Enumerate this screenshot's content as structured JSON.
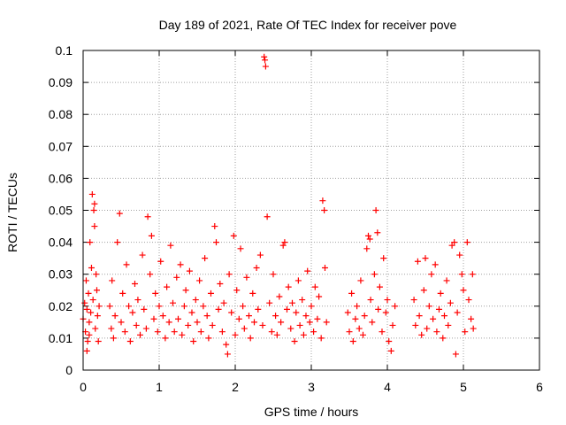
{
  "chart_data": {
    "type": "scatter",
    "title": "Day 189 of 2021, Rate Of TEC Index for receiver pove",
    "xlabel": "GPS time / hours",
    "ylabel": "ROTI / TECUs",
    "xlim": [
      0,
      6
    ],
    "ylim": [
      0,
      0.1
    ],
    "x_ticks": [
      "0",
      "1",
      "2",
      "3",
      "4",
      "5",
      "6"
    ],
    "y_ticks": [
      "0",
      "0.01",
      "0.02",
      "0.03",
      "0.04",
      "0.05",
      "0.06",
      "0.07",
      "0.08",
      "0.09",
      "0.1"
    ],
    "grid": true,
    "legend": "none",
    "marker": "+",
    "marker_color": "#ff0000",
    "series": [
      {
        "points": [
          [
            0.0,
            0.016
          ],
          [
            0.02,
            0.021
          ],
          [
            0.03,
            0.012
          ],
          [
            0.04,
            0.028
          ],
          [
            0.05,
            0.019
          ],
          [
            0.06,
            0.009
          ],
          [
            0.07,
            0.024
          ],
          [
            0.08,
            0.015
          ],
          [
            0.09,
            0.04
          ],
          [
            0.1,
            0.018
          ],
          [
            0.11,
            0.032
          ],
          [
            0.12,
            0.055
          ],
          [
            0.13,
            0.022
          ],
          [
            0.14,
            0.05
          ],
          [
            0.15,
            0.045
          ],
          [
            0.16,
            0.013
          ],
          [
            0.17,
            0.03
          ],
          [
            0.18,
            0.025
          ],
          [
            0.19,
            0.017
          ],
          [
            0.2,
            0.009
          ],
          [
            0.21,
            0.02
          ],
          [
            0.05,
            0.006
          ],
          [
            0.08,
            0.011
          ],
          [
            0.15,
            0.052
          ],
          [
            0.35,
            0.02
          ],
          [
            0.37,
            0.013
          ],
          [
            0.38,
            0.028
          ],
          [
            0.4,
            0.01
          ],
          [
            0.42,
            0.017
          ],
          [
            0.45,
            0.04
          ],
          [
            0.48,
            0.049
          ],
          [
            0.5,
            0.015
          ],
          [
            0.52,
            0.024
          ],
          [
            0.55,
            0.012
          ],
          [
            0.57,
            0.033
          ],
          [
            0.6,
            0.02
          ],
          [
            0.62,
            0.009
          ],
          [
            0.65,
            0.018
          ],
          [
            0.68,
            0.027
          ],
          [
            0.7,
            0.014
          ],
          [
            0.72,
            0.022
          ],
          [
            0.75,
            0.011
          ],
          [
            0.78,
            0.036
          ],
          [
            0.8,
            0.019
          ],
          [
            0.83,
            0.013
          ],
          [
            0.85,
            0.048
          ],
          [
            0.88,
            0.03
          ],
          [
            0.9,
            0.042
          ],
          [
            0.93,
            0.016
          ],
          [
            0.95,
            0.024
          ],
          [
            0.98,
            0.012
          ],
          [
            1.0,
            0.02
          ],
          [
            1.02,
            0.034
          ],
          [
            1.05,
            0.017
          ],
          [
            1.08,
            0.01
          ],
          [
            1.1,
            0.026
          ],
          [
            1.13,
            0.015
          ],
          [
            1.15,
            0.039
          ],
          [
            1.18,
            0.021
          ],
          [
            1.2,
            0.012
          ],
          [
            1.23,
            0.029
          ],
          [
            1.25,
            0.016
          ],
          [
            1.28,
            0.033
          ],
          [
            1.3,
            0.011
          ],
          [
            1.33,
            0.02
          ],
          [
            1.35,
            0.025
          ],
          [
            1.38,
            0.014
          ],
          [
            1.4,
            0.031
          ],
          [
            1.43,
            0.018
          ],
          [
            1.45,
            0.009
          ],
          [
            1.48,
            0.022
          ],
          [
            1.5,
            0.015
          ],
          [
            1.53,
            0.028
          ],
          [
            1.55,
            0.012
          ],
          [
            1.58,
            0.02
          ],
          [
            1.6,
            0.035
          ],
          [
            1.63,
            0.017
          ],
          [
            1.65,
            0.01
          ],
          [
            1.68,
            0.024
          ],
          [
            1.7,
            0.014
          ],
          [
            1.73,
            0.045
          ],
          [
            1.75,
            0.04
          ],
          [
            1.78,
            0.019
          ],
          [
            1.8,
            0.027
          ],
          [
            1.83,
            0.012
          ],
          [
            1.85,
            0.021
          ],
          [
            1.88,
            0.008
          ],
          [
            1.9,
            0.005
          ],
          [
            1.92,
            0.03
          ],
          [
            1.95,
            0.018
          ],
          [
            1.98,
            0.042
          ],
          [
            2.0,
            0.011
          ],
          [
            2.02,
            0.025
          ],
          [
            2.05,
            0.016
          ],
          [
            2.07,
            0.038
          ],
          [
            2.1,
            0.02
          ],
          [
            2.12,
            0.013
          ],
          [
            2.15,
            0.029
          ],
          [
            2.18,
            0.017
          ],
          [
            2.2,
            0.01
          ],
          [
            2.23,
            0.024
          ],
          [
            2.25,
            0.015
          ],
          [
            2.28,
            0.032
          ],
          [
            2.3,
            0.019
          ],
          [
            2.33,
            0.036
          ],
          [
            2.36,
            0.014
          ],
          [
            2.38,
            0.098
          ],
          [
            2.39,
            0.097
          ],
          [
            2.4,
            0.095
          ],
          [
            2.42,
            0.048
          ],
          [
            2.45,
            0.021
          ],
          [
            2.48,
            0.012
          ],
          [
            2.5,
            0.03
          ],
          [
            2.53,
            0.017
          ],
          [
            2.55,
            0.011
          ],
          [
            2.58,
            0.023
          ],
          [
            2.6,
            0.015
          ],
          [
            2.63,
            0.039
          ],
          [
            2.65,
            0.04
          ],
          [
            2.68,
            0.019
          ],
          [
            2.7,
            0.026
          ],
          [
            2.73,
            0.013
          ],
          [
            2.75,
            0.021
          ],
          [
            2.78,
            0.009
          ],
          [
            2.8,
            0.018
          ],
          [
            2.83,
            0.028
          ],
          [
            2.85,
            0.014
          ],
          [
            2.88,
            0.022
          ],
          [
            2.9,
            0.011
          ],
          [
            2.93,
            0.017
          ],
          [
            2.95,
            0.031
          ],
          [
            2.98,
            0.015
          ],
          [
            3.0,
            0.02
          ],
          [
            3.03,
            0.012
          ],
          [
            3.05,
            0.026
          ],
          [
            3.08,
            0.016
          ],
          [
            3.1,
            0.023
          ],
          [
            3.13,
            0.01
          ],
          [
            3.15,
            0.053
          ],
          [
            3.17,
            0.05
          ],
          [
            3.18,
            0.032
          ],
          [
            3.2,
            0.015
          ],
          [
            3.48,
            0.018
          ],
          [
            3.5,
            0.012
          ],
          [
            3.53,
            0.024
          ],
          [
            3.55,
            0.009
          ],
          [
            3.58,
            0.016
          ],
          [
            3.6,
            0.02
          ],
          [
            3.63,
            0.013
          ],
          [
            3.65,
            0.028
          ],
          [
            3.68,
            0.011
          ],
          [
            3.7,
            0.017
          ],
          [
            3.73,
            0.038
          ],
          [
            3.75,
            0.042
          ],
          [
            3.77,
            0.041
          ],
          [
            3.78,
            0.022
          ],
          [
            3.8,
            0.015
          ],
          [
            3.83,
            0.03
          ],
          [
            3.85,
            0.05
          ],
          [
            3.87,
            0.043
          ],
          [
            3.88,
            0.019
          ],
          [
            3.9,
            0.026
          ],
          [
            3.93,
            0.012
          ],
          [
            3.95,
            0.035
          ],
          [
            3.98,
            0.018
          ],
          [
            4.0,
            0.022
          ],
          [
            4.02,
            0.009
          ],
          [
            4.05,
            0.006
          ],
          [
            4.07,
            0.014
          ],
          [
            4.1,
            0.02
          ],
          [
            4.35,
            0.022
          ],
          [
            4.37,
            0.014
          ],
          [
            4.4,
            0.034
          ],
          [
            4.42,
            0.017
          ],
          [
            4.45,
            0.011
          ],
          [
            4.48,
            0.025
          ],
          [
            4.5,
            0.035
          ],
          [
            4.52,
            0.013
          ],
          [
            4.55,
            0.02
          ],
          [
            4.58,
            0.03
          ],
          [
            4.6,
            0.016
          ],
          [
            4.63,
            0.033
          ],
          [
            4.65,
            0.012
          ],
          [
            4.68,
            0.019
          ],
          [
            4.7,
            0.024
          ],
          [
            4.73,
            0.01
          ],
          [
            4.75,
            0.017
          ],
          [
            4.78,
            0.028
          ],
          [
            4.8,
            0.014
          ],
          [
            4.83,
            0.021
          ],
          [
            4.85,
            0.039
          ],
          [
            4.88,
            0.04
          ],
          [
            4.9,
            0.005
          ],
          [
            4.92,
            0.018
          ],
          [
            4.95,
            0.036
          ],
          [
            4.98,
            0.03
          ],
          [
            5.0,
            0.025
          ],
          [
            5.02,
            0.012
          ],
          [
            5.05,
            0.04
          ],
          [
            5.07,
            0.022
          ],
          [
            5.1,
            0.016
          ],
          [
            5.12,
            0.03
          ],
          [
            5.13,
            0.013
          ]
        ]
      }
    ]
  }
}
